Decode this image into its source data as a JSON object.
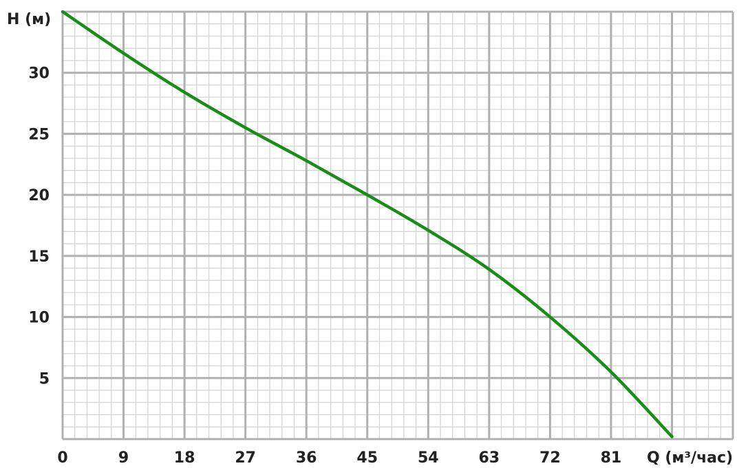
{
  "chart_data": {
    "type": "line",
    "ylabel": "H (м)",
    "xlabel": "Q (м³/час)",
    "x_ticks": [
      "0",
      "9",
      "18",
      "27",
      "36",
      "45",
      "54",
      "63",
      "72",
      "81"
    ],
    "y_ticks": [
      "5",
      "10",
      "15",
      "20",
      "25",
      "30"
    ],
    "xlim": [
      0,
      99
    ],
    "ylim": [
      0,
      35
    ],
    "grid": true,
    "minor_grid": true,
    "series": [
      {
        "color": "#1a8c1a",
        "x": [
          0,
          9,
          18,
          27,
          36,
          45,
          54,
          63,
          72,
          81,
          90
        ],
        "y": [
          35.0,
          31.6,
          28.4,
          25.5,
          22.8,
          20.0,
          17.1,
          13.9,
          10.0,
          5.5,
          0.2
        ]
      }
    ]
  },
  "colors": {
    "major_grid": "#b0b0b0",
    "minor_grid": "#d2d2d2",
    "curve": "#1a8c1a",
    "text": "#222222"
  }
}
